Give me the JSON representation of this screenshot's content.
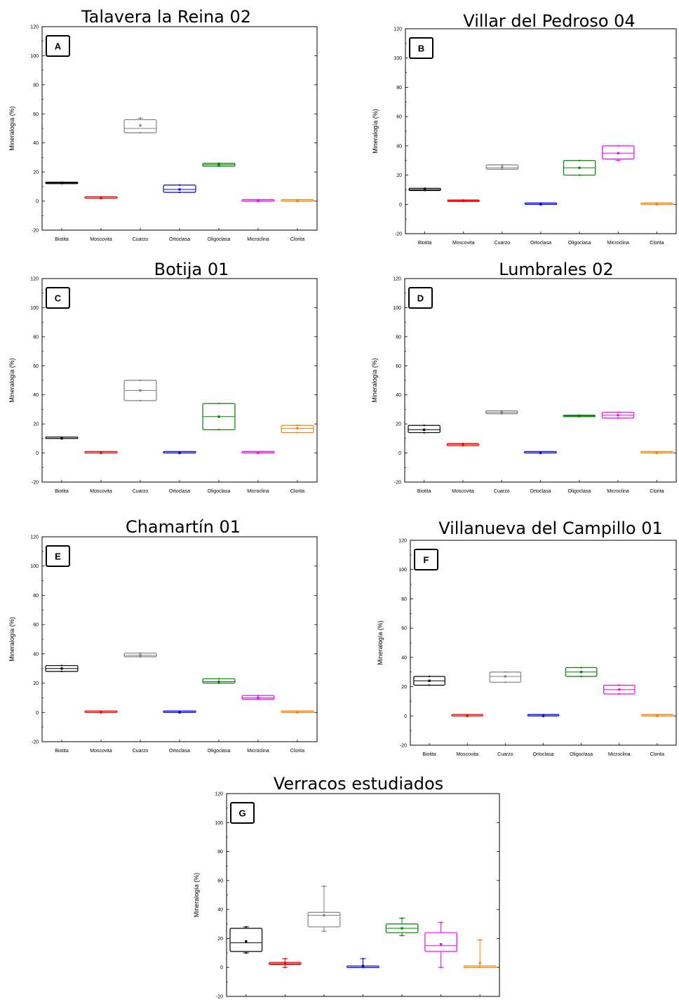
{
  "chart_data": [
    {
      "type": "box",
      "title": "Talavera la Reina 02",
      "letter": "A",
      "ylabel": "Mineralogía (%)",
      "ylim": [
        -20,
        120
      ],
      "yticks": [
        -20,
        0,
        20,
        40,
        60,
        80,
        100,
        120
      ],
      "categories": [
        "Biotita",
        "Moscovita",
        "Cuarzo",
        "Ortoclasa",
        "Oligoclasa",
        "Microclina",
        "Clorita"
      ],
      "colors": [
        "#000000",
        "#ff0000",
        "#808080",
        "#0000ff",
        "#008000",
        "#ff00ff",
        "#ff8000"
      ],
      "boxes": [
        {
          "q1": 12,
          "q3": 13,
          "median": 12.5,
          "mean": 12.5,
          "min": 12,
          "max": 13
        },
        {
          "q1": 2,
          "q3": 2.5,
          "median": 2,
          "mean": 2,
          "min": 2,
          "max": 2.5
        },
        {
          "q1": 47,
          "q3": 56,
          "median": 50,
          "mean": 52,
          "min": 47,
          "max": 57
        },
        {
          "q1": 6,
          "q3": 11,
          "median": 8,
          "mean": 8,
          "min": 6,
          "max": 11
        },
        {
          "q1": 24,
          "q3": 26,
          "median": 25,
          "mean": 25,
          "min": 24,
          "max": 26
        },
        {
          "q1": 0,
          "q3": 0.5,
          "median": 0,
          "mean": 0,
          "min": 0,
          "max": 0.5
        },
        {
          "q1": 0,
          "q3": 0.5,
          "median": 0,
          "mean": 0,
          "min": 0,
          "max": 0.5
        }
      ]
    },
    {
      "type": "box",
      "title": "Villar del Pedroso 04",
      "letter": "B",
      "ylabel": "Mineralogía (%)",
      "ylim": [
        -20,
        120
      ],
      "yticks": [
        -20,
        0,
        20,
        40,
        60,
        80,
        100,
        120
      ],
      "categories": [
        "Biotita",
        "Moscovita",
        "Cuarzo",
        "Ortoclasa",
        "Oligoclasa",
        "Microclina",
        "Clorita"
      ],
      "colors": [
        "#000000",
        "#ff0000",
        "#808080",
        "#0000ff",
        "#008000",
        "#ff00ff",
        "#ff8000"
      ],
      "boxes": [
        {
          "q1": 9.5,
          "q3": 11,
          "median": 10,
          "mean": 10,
          "min": 9.5,
          "max": 11
        },
        {
          "q1": 2,
          "q3": 3,
          "median": 2.5,
          "mean": 2.5,
          "min": 2,
          "max": 3
        },
        {
          "q1": 24,
          "q3": 27,
          "median": 25,
          "mean": 25.5,
          "min": 24,
          "max": 27
        },
        {
          "q1": 0,
          "q3": 0.5,
          "median": 0,
          "mean": 0,
          "min": 0,
          "max": 0.5
        },
        {
          "q1": 20,
          "q3": 30,
          "median": 25,
          "mean": 25,
          "min": 20,
          "max": 30
        },
        {
          "q1": 31,
          "q3": 40,
          "median": 35,
          "mean": 35,
          "min": 30,
          "max": 40
        },
        {
          "q1": 0,
          "q3": 0.5,
          "median": 0,
          "mean": 0,
          "min": 0,
          "max": 0.5
        }
      ]
    },
    {
      "type": "box",
      "title": "Botija 01",
      "letter": "C",
      "ylabel": "Mineralogía (%)",
      "ylim": [
        -20,
        120
      ],
      "yticks": [
        -20,
        0,
        20,
        40,
        60,
        80,
        100,
        120
      ],
      "categories": [
        "Biotita",
        "Moscovita",
        "Cuarzo",
        "Ortoclasa",
        "Oligoclasa",
        "Microclina",
        "Clorita"
      ],
      "colors": [
        "#000000",
        "#ff0000",
        "#808080",
        "#0000ff",
        "#008000",
        "#ff00ff",
        "#ff8000"
      ],
      "boxes": [
        {
          "q1": 10,
          "q3": 10.5,
          "median": 10,
          "mean": 10,
          "min": 10,
          "max": 10.5
        },
        {
          "q1": 0,
          "q3": 0.5,
          "median": 0,
          "mean": 0,
          "min": 0,
          "max": 0.5
        },
        {
          "q1": 36,
          "q3": 50,
          "median": 43,
          "mean": 43,
          "min": 36,
          "max": 50
        },
        {
          "q1": 0,
          "q3": 0.5,
          "median": 0,
          "mean": 0,
          "min": 0,
          "max": 0.5
        },
        {
          "q1": 16,
          "q3": 34,
          "median": 25,
          "mean": 25,
          "min": 16,
          "max": 34
        },
        {
          "q1": 0,
          "q3": 0.5,
          "median": 0,
          "mean": 0,
          "min": 0,
          "max": 0.5
        },
        {
          "q1": 14,
          "q3": 19,
          "median": 17,
          "mean": 17,
          "min": 14,
          "max": 19
        }
      ]
    },
    {
      "type": "box",
      "title": "Lumbrales 02",
      "letter": "D",
      "ylabel": "Mineralogía (%)",
      "ylim": [
        -20,
        120
      ],
      "yticks": [
        -20,
        0,
        20,
        40,
        60,
        80,
        100,
        120
      ],
      "categories": [
        "Biotita",
        "Moscovita",
        "Cuarzo",
        "Ortoclasa",
        "Oligoclasa",
        "Microclina",
        "Clorita"
      ],
      "colors": [
        "#000000",
        "#ff0000",
        "#808080",
        "#0000ff",
        "#008000",
        "#ff00ff",
        "#ff8000"
      ],
      "boxes": [
        {
          "q1": 14,
          "q3": 19,
          "median": 16,
          "mean": 16,
          "min": 14,
          "max": 19
        },
        {
          "q1": 5,
          "q3": 6.5,
          "median": 6,
          "mean": 6,
          "min": 5,
          "max": 6.5
        },
        {
          "q1": 27,
          "q3": 29,
          "median": 28,
          "mean": 28,
          "min": 27,
          "max": 29
        },
        {
          "q1": 0,
          "q3": 0.5,
          "median": 0,
          "mean": 0,
          "min": 0,
          "max": 0.5
        },
        {
          "q1": 25,
          "q3": 26,
          "median": 25.5,
          "mean": 25.5,
          "min": 25,
          "max": 26
        },
        {
          "q1": 24,
          "q3": 28,
          "median": 26,
          "mean": 26,
          "min": 24,
          "max": 28
        },
        {
          "q1": 0,
          "q3": 0.5,
          "median": 0,
          "mean": 0,
          "min": 0,
          "max": 0.5
        }
      ]
    },
    {
      "type": "box",
      "title": "Chamartín 01",
      "letter": "E",
      "ylabel": "Mineralogía (%)",
      "ylim": [
        -20,
        120
      ],
      "yticks": [
        -20,
        0,
        20,
        40,
        60,
        80,
        100,
        120
      ],
      "categories": [
        "Biotita",
        "Moscovita",
        "Cuarzo",
        "Ortoclasa",
        "Oligoclasa",
        "Microclina",
        "Clorita"
      ],
      "colors": [
        "#000000",
        "#ff0000",
        "#808080",
        "#0000ff",
        "#008000",
        "#ff00ff",
        "#ff8000"
      ],
      "boxes": [
        {
          "q1": 28,
          "q3": 32,
          "median": 30,
          "mean": 30,
          "min": 28,
          "max": 32
        },
        {
          "q1": 0,
          "q3": 0.5,
          "median": 0,
          "mean": 0,
          "min": 0,
          "max": 0.5
        },
        {
          "q1": 38,
          "q3": 40.5,
          "median": 39,
          "mean": 39,
          "min": 38,
          "max": 40.5
        },
        {
          "q1": 0,
          "q3": 0.5,
          "median": 0,
          "mean": 0,
          "min": 0,
          "max": 0.5
        },
        {
          "q1": 20,
          "q3": 23,
          "median": 21,
          "mean": 21,
          "min": 20,
          "max": 23
        },
        {
          "q1": 9,
          "q3": 11.5,
          "median": 10,
          "mean": 10,
          "min": 9,
          "max": 11.5
        },
        {
          "q1": 0,
          "q3": 0.5,
          "median": 0,
          "mean": 0,
          "min": 0,
          "max": 0.5
        }
      ]
    },
    {
      "type": "box",
      "title": "Villanueva del Campillo 01",
      "letter": "F",
      "ylabel": "Mineralogía (%)",
      "ylim": [
        -20,
        120
      ],
      "yticks": [
        -20,
        0,
        20,
        40,
        60,
        80,
        100,
        120
      ],
      "categories": [
        "Biotita",
        "Moscovita",
        "Cuarzo",
        "Ortoclasa",
        "Oligoclasa",
        "Microclina",
        "Clorita"
      ],
      "colors": [
        "#000000",
        "#ff0000",
        "#808080",
        "#0000ff",
        "#008000",
        "#ff00ff",
        "#ff8000"
      ],
      "boxes": [
        {
          "q1": 21,
          "q3": 27,
          "median": 24,
          "mean": 24,
          "min": 21,
          "max": 27
        },
        {
          "q1": 0,
          "q3": 0.5,
          "median": 0,
          "mean": 0,
          "min": 0,
          "max": 0.5
        },
        {
          "q1": 23,
          "q3": 30,
          "median": 27,
          "mean": 27,
          "min": 23,
          "max": 30
        },
        {
          "q1": 0,
          "q3": 0.5,
          "median": 0,
          "mean": 0,
          "min": 0,
          "max": 0.5
        },
        {
          "q1": 27,
          "q3": 33,
          "median": 30,
          "mean": 30,
          "min": 27,
          "max": 33
        },
        {
          "q1": 15,
          "q3": 21,
          "median": 18,
          "mean": 18,
          "min": 15,
          "max": 21
        },
        {
          "q1": 0,
          "q3": 0.5,
          "median": 0,
          "mean": 0,
          "min": 0,
          "max": 0.5
        }
      ]
    },
    {
      "type": "box",
      "title": "Verracos estudiados",
      "letter": "G",
      "ylabel": "Mineralogía (%)",
      "ylim": [
        -20,
        120
      ],
      "yticks": [
        -20,
        0,
        20,
        40,
        60,
        80,
        100,
        120
      ],
      "categories": [
        "",
        "",
        "",
        "",
        "",
        "",
        ""
      ],
      "colors": [
        "#000000",
        "#ff0000",
        "#808080",
        "#0000ff",
        "#008000",
        "#ff00ff",
        "#ff8000"
      ],
      "boxes": [
        {
          "q1": 11,
          "q3": 27,
          "median": 17,
          "mean": 18,
          "min": 10,
          "max": 28
        },
        {
          "q1": 2,
          "q3": 3.5,
          "median": 2.5,
          "mean": 2.5,
          "min": 0,
          "max": 6
        },
        {
          "q1": 28,
          "q3": 38,
          "median": 36,
          "mean": 36,
          "min": 25,
          "max": 56
        },
        {
          "q1": 0,
          "q3": 0.5,
          "median": 0,
          "mean": 1,
          "min": 0,
          "max": 6
        },
        {
          "q1": 24,
          "q3": 30,
          "median": 27,
          "mean": 27,
          "min": 22,
          "max": 34
        },
        {
          "q1": 11,
          "q3": 24,
          "median": 15,
          "mean": 16,
          "min": 0,
          "max": 31
        },
        {
          "q1": 0,
          "q3": 0.5,
          "median": 0,
          "mean": 3,
          "min": 0,
          "max": 19
        }
      ]
    }
  ]
}
